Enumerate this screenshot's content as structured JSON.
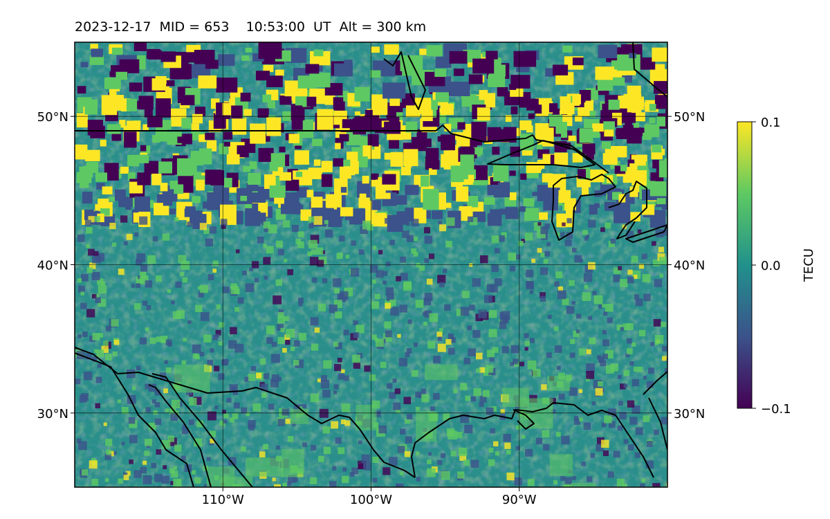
{
  "title": {
    "date": "2023-12-17",
    "mid": "MID = 653",
    "time": "10:53:00  UT",
    "alt": "Alt = 300 km"
  },
  "map": {
    "lon_range": [
      -120,
      -80
    ],
    "lat_range": [
      25,
      55
    ],
    "lon_ticks": [
      {
        "value": -110,
        "label": "110°W"
      },
      {
        "value": -100,
        "label": "100°W"
      },
      {
        "value": -90,
        "label": "90°W"
      }
    ],
    "lat_ticks": [
      {
        "value": 50,
        "label": "50°N"
      },
      {
        "value": 40,
        "label": "40°N"
      },
      {
        "value": 30,
        "label": "30°N"
      }
    ],
    "grid": true,
    "field": "differential total electron content",
    "colormap": "viridis"
  },
  "colorbar": {
    "label": "TECU",
    "min": -0.1,
    "max": 0.1,
    "ticks": [
      {
        "value": 0.1,
        "label": "0.1"
      },
      {
        "value": 0.0,
        "label": "0.0"
      },
      {
        "value": -0.1,
        "label": "−0.1"
      }
    ],
    "colors": [
      "#440154",
      "#3b528b",
      "#21918c",
      "#5ec962",
      "#fde725"
    ]
  }
}
